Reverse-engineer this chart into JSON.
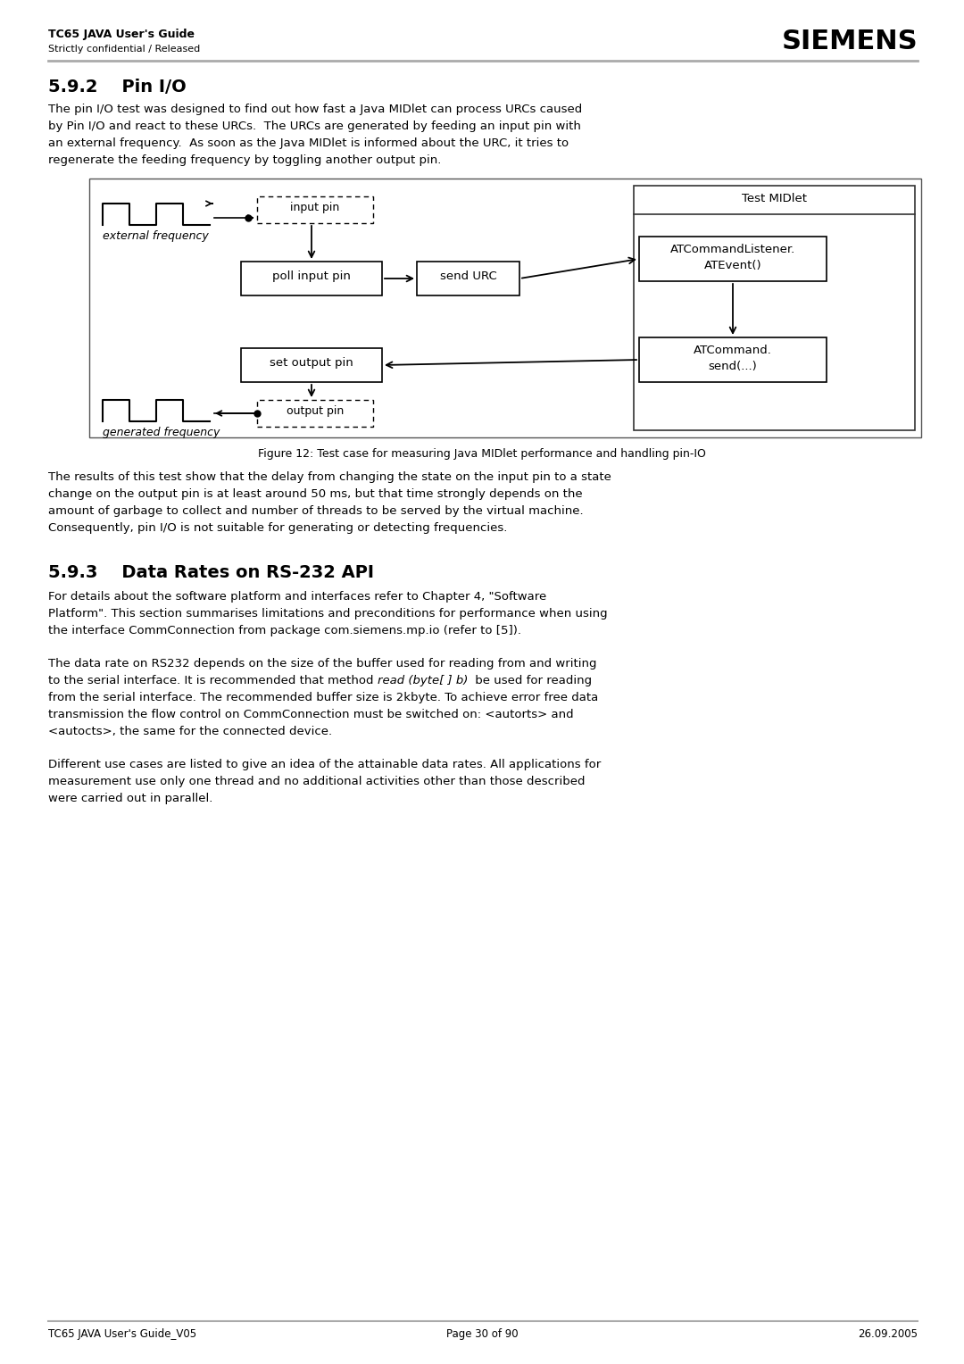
{
  "page_title_left": "TC65 JAVA User's Guide",
  "page_subtitle_left": "Strictly confidential / Released",
  "page_title_right": "SIEMENS",
  "section_592_title": "5.9.2    Pin I/O",
  "section_592_body1": "The pin I/O test was designed to find out how fast a Java MIDlet can process URCs caused\nby Pin I/O and react to these URCs.  The URCs are generated by feeding an input pin with\nan external frequency.  As soon as the Java MIDlet is informed about the URC, it tries to\nregenerate the feeding frequency by toggling another output pin.",
  "figure_caption": "Figure 12: Test case for measuring Java MIDlet performance and handling pin-IO",
  "section_592_body2": "The results of this test show that the delay from changing the state on the input pin to a state\nchange on the output pin is at least around 50 ms, but that time strongly depends on the\namount of garbage to collect and number of threads to be served by the virtual machine.\nConsequently, pin I/O is not suitable for generating or detecting frequencies.",
  "section_593_title": "5.9.3    Data Rates on RS-232 API",
  "section_593_body1": "For details about the software platform and interfaces refer to Chapter 4, \"Software\nPlatform\". This section summarises limitations and preconditions for performance when using\nthe interface CommConnection from package com.siemens.mp.io (refer to [5]).",
  "section_593_body2_pre": "The data rate on RS232 depends on the size of the buffer used for reading from and writing\nto the serial interface. It is recommended that method ",
  "section_593_body2_italic": "read (byte[ ] b) ",
  "section_593_body2_post": " be used for reading\nfrom the serial interface. The recommended buffer size is 2kbyte. To achieve error free data\ntransmission the flow control on CommConnection must be switched on: <autorts> and\n<autocts>, the same for the connected device.",
  "section_593_body3": "Different use cases are listed to give an idea of the attainable data rates. All applications for\nmeasurement use only one thread and no additional activities other than those described\nwere carried out in parallel.",
  "footer_left": "TC65 JAVA User's Guide_V05",
  "footer_center": "Page 30 of 90",
  "footer_right": "26.09.2005",
  "bg_color": "#ffffff",
  "text_color": "#000000",
  "line_color": "#000000",
  "header_line_color": "#aaaaaa"
}
